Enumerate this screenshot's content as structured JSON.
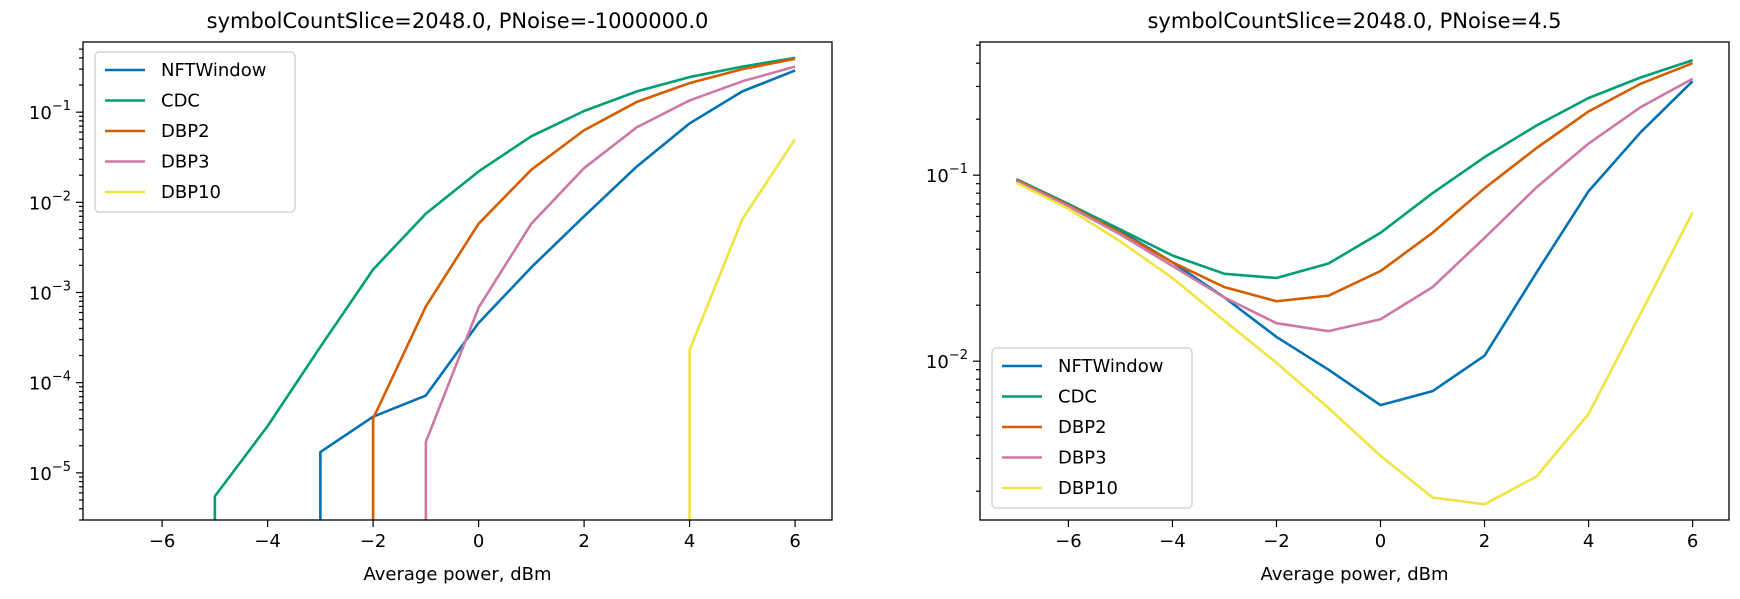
{
  "chart_data": [
    {
      "type": "line",
      "title": "symbolCountSlice=2048.0, PNoise=-1000000.0",
      "xlabel": "Average power, dBm",
      "ylabel": "",
      "x_scale": "linear",
      "y_scale": "log",
      "xlim": [
        -7.5,
        6.7
      ],
      "ylim": [
        3e-06,
        0.6
      ],
      "xticks": [
        -6,
        -4,
        -2,
        0,
        2,
        4,
        6
      ],
      "xtick_labels": [
        "−6",
        "−4",
        "−2",
        "0",
        "2",
        "4",
        "6"
      ],
      "yticks_exp": [
        -5,
        -4,
        -3,
        -2,
        -1
      ],
      "yticks_base": "10",
      "grid": false,
      "legend_position": "upper-left",
      "series": [
        {
          "name": "NFTWindow",
          "color": "#0072B2",
          "points": [
            [
              -3,
              3e-06
            ],
            [
              -3,
              1.7e-05
            ],
            [
              -2,
              4.2e-05
            ],
            [
              -1,
              7.2e-05
            ],
            [
              0,
              0.00046
            ],
            [
              1,
              0.0019
            ],
            [
              2,
              0.007
            ],
            [
              3,
              0.025
            ],
            [
              4,
              0.075
            ],
            [
              5,
              0.17
            ],
            [
              6,
              0.29
            ]
          ]
        },
        {
          "name": "CDC",
          "color": "#009E73",
          "points": [
            [
              -5,
              3e-06
            ],
            [
              -5,
              5.5e-06
            ],
            [
              -4,
              3.3e-05
            ],
            [
              -3,
              0.00025
            ],
            [
              -2,
              0.0018
            ],
            [
              -1,
              0.0075
            ],
            [
              0,
              0.022
            ],
            [
              1,
              0.054
            ],
            [
              2,
              0.103
            ],
            [
              3,
              0.17
            ],
            [
              4,
              0.245
            ],
            [
              5,
              0.32
            ],
            [
              6,
              0.4
            ]
          ]
        },
        {
          "name": "DBP2",
          "color": "#D55E00",
          "points": [
            [
              -2,
              3e-06
            ],
            [
              -2,
              4e-05
            ],
            [
              -1,
              0.0007
            ],
            [
              0,
              0.0058
            ],
            [
              1,
              0.023
            ],
            [
              2,
              0.063
            ],
            [
              3,
              0.13
            ],
            [
              4,
              0.21
            ],
            [
              5,
              0.3
            ],
            [
              6,
              0.39
            ]
          ]
        },
        {
          "name": "DBP3",
          "color": "#CC79A7",
          "points": [
            [
              -1,
              3e-06
            ],
            [
              -1,
              2.2e-05
            ],
            [
              0,
              0.00068
            ],
            [
              1,
              0.0058
            ],
            [
              2,
              0.024
            ],
            [
              3,
              0.068
            ],
            [
              4,
              0.135
            ],
            [
              5,
              0.22
            ],
            [
              6,
              0.32
            ]
          ]
        },
        {
          "name": "DBP10",
          "color": "#F0E442",
          "points": [
            [
              4,
              3e-06
            ],
            [
              4,
              0.00023
            ],
            [
              5,
              0.0065
            ],
            [
              6,
              0.05
            ]
          ]
        }
      ]
    },
    {
      "type": "line",
      "title": "symbolCountSlice=2048.0, PNoise=4.5",
      "xlabel": "Average power, dBm",
      "ylabel": "",
      "x_scale": "linear",
      "y_scale": "log",
      "xlim": [
        -7.7,
        6.7
      ],
      "ylim": [
        0.0014,
        0.52
      ],
      "xticks": [
        -6,
        -4,
        -2,
        0,
        2,
        4,
        6
      ],
      "xtick_labels": [
        "−6",
        "−4",
        "−2",
        "0",
        "2",
        "4",
        "6"
      ],
      "yticks_exp": [
        -2,
        -1
      ],
      "yticks_base": "10",
      "grid": false,
      "legend_position": "lower-left",
      "series": [
        {
          "name": "NFTWindow",
          "color": "#0072B2",
          "points": [
            [
              -7,
              0.095
            ],
            [
              -6,
              0.07
            ],
            [
              -5,
              0.05
            ],
            [
              -4,
              0.034
            ],
            [
              -3,
              0.022
            ],
            [
              -2,
              0.0135
            ],
            [
              -1,
              0.009
            ],
            [
              0,
              0.0058
            ],
            [
              1,
              0.0069
            ],
            [
              2,
              0.0107
            ],
            [
              3,
              0.03
            ],
            [
              4,
              0.082
            ],
            [
              5,
              0.17
            ],
            [
              6,
              0.32
            ]
          ]
        },
        {
          "name": "CDC",
          "color": "#009E73",
          "points": [
            [
              -7,
              0.095
            ],
            [
              -6,
              0.07
            ],
            [
              -5,
              0.051
            ],
            [
              -4,
              0.037
            ],
            [
              -3,
              0.0295
            ],
            [
              -2,
              0.028
            ],
            [
              -1,
              0.0335
            ],
            [
              0,
              0.049
            ],
            [
              1,
              0.08
            ],
            [
              2,
              0.125
            ],
            [
              3,
              0.185
            ],
            [
              4,
              0.26
            ],
            [
              5,
              0.335
            ],
            [
              6,
              0.415
            ]
          ]
        },
        {
          "name": "DBP2",
          "color": "#D55E00",
          "points": [
            [
              -7,
              0.094
            ],
            [
              -6,
              0.069
            ],
            [
              -5,
              0.049
            ],
            [
              -4,
              0.034
            ],
            [
              -3,
              0.025
            ],
            [
              -2,
              0.021
            ],
            [
              -1,
              0.0225
            ],
            [
              0,
              0.0305
            ],
            [
              1,
              0.049
            ],
            [
              2,
              0.085
            ],
            [
              3,
              0.14
            ],
            [
              4,
              0.22
            ],
            [
              5,
              0.31
            ],
            [
              6,
              0.4
            ]
          ]
        },
        {
          "name": "DBP3",
          "color": "#CC79A7",
          "points": [
            [
              -7,
              0.093
            ],
            [
              -6,
              0.068
            ],
            [
              -5,
              0.048
            ],
            [
              -4,
              0.0325
            ],
            [
              -3,
              0.022
            ],
            [
              -2,
              0.016
            ],
            [
              -1,
              0.0145
            ],
            [
              0,
              0.0168
            ],
            [
              1,
              0.025
            ],
            [
              2,
              0.046
            ],
            [
              3,
              0.086
            ],
            [
              4,
              0.148
            ],
            [
              5,
              0.232
            ],
            [
              6,
              0.33
            ]
          ]
        },
        {
          "name": "DBP10",
          "color": "#F0E442",
          "points": [
            [
              -7,
              0.091
            ],
            [
              -6,
              0.066
            ],
            [
              -5,
              0.044
            ],
            [
              -4,
              0.028
            ],
            [
              -3,
              0.0165
            ],
            [
              -2,
              0.0098
            ],
            [
              -1,
              0.0056
            ],
            [
              0,
              0.0031
            ],
            [
              1,
              0.00185
            ],
            [
              2,
              0.0017
            ],
            [
              3,
              0.0024
            ],
            [
              4,
              0.0052
            ],
            [
              5,
              0.018
            ],
            [
              6,
              0.063
            ]
          ]
        }
      ]
    }
  ]
}
